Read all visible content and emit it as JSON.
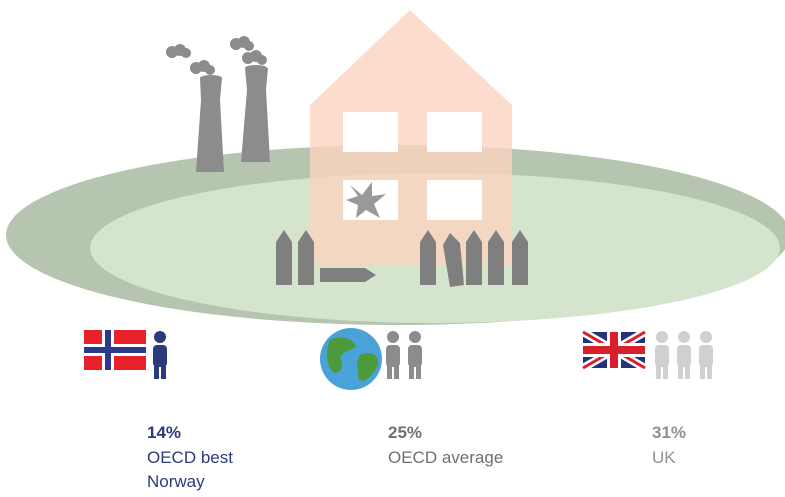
{
  "items": [
    {
      "value": "14%",
      "label": "OECD best",
      "sublabel": "Norway"
    },
    {
      "value": "25%",
      "label": "OECD average"
    },
    {
      "value": "31%",
      "label": "UK"
    }
  ]
}
